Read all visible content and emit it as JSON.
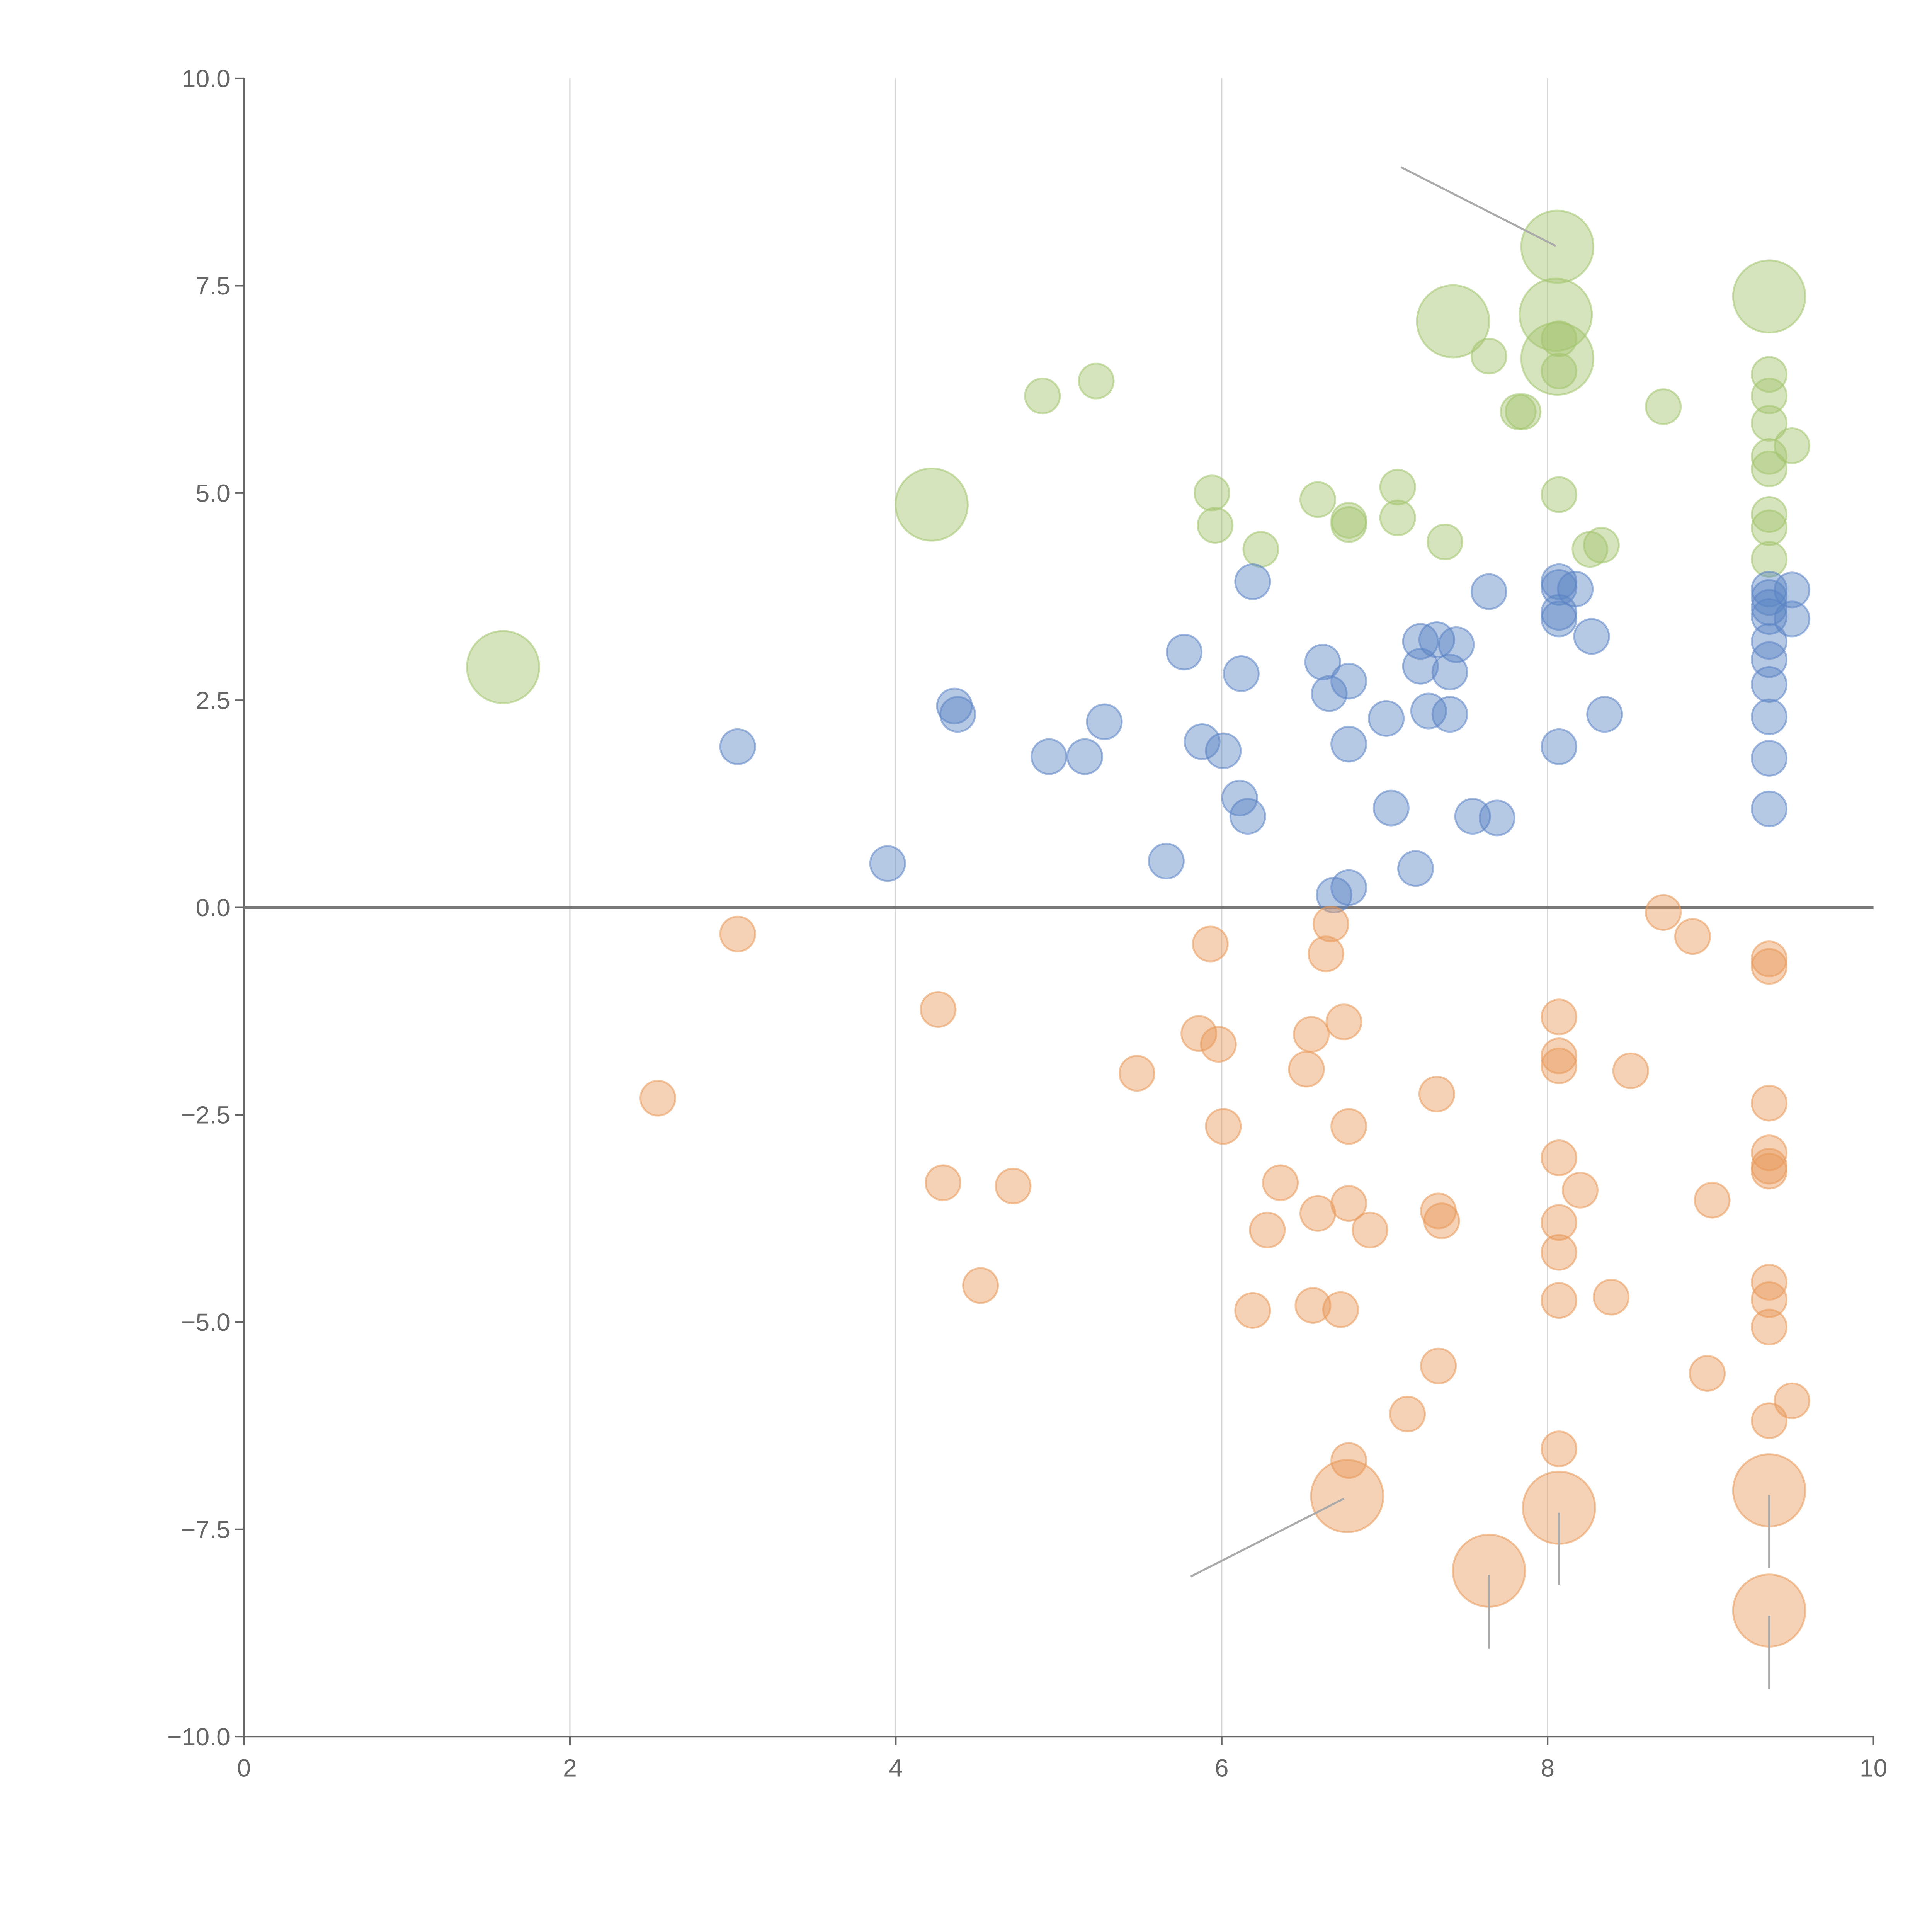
{
  "chart_data": {
    "type": "scatter",
    "title": "",
    "xlabel": "",
    "ylabel": "",
    "xlim": [
      0,
      10
    ],
    "ylim": [
      -10,
      10
    ],
    "grid": "vertical",
    "reference_line_y": 0,
    "x_ticks": [
      "0",
      "2",
      "4",
      "6",
      "8",
      "10"
    ],
    "x_tick_values": [
      0,
      2,
      4,
      6,
      8,
      10
    ],
    "y_ticks": [
      "10.0",
      "7.5",
      "5.0",
      "2.5",
      "0.0",
      "−2.5",
      "−5.0",
      "−7.5",
      "−10.0"
    ],
    "y_tick_values": [
      10,
      7.5,
      5,
      2.5,
      0,
      -2.5,
      -5,
      -7.5,
      -10
    ],
    "size_legend": "point format [x, y, size] where size 1 = small bubble, 2 = large bubble",
    "series": [
      {
        "name": "green",
        "color": "#a3c46e",
        "points": [
          [
            1.59,
            2.9,
            2
          ],
          [
            4.22,
            4.86,
            2
          ],
          [
            8.06,
            7.97,
            2
          ],
          [
            9.36,
            7.37,
            2
          ],
          [
            7.42,
            7.07,
            2
          ],
          [
            8.05,
            7.15,
            2
          ],
          [
            8.06,
            6.62,
            2
          ],
          [
            4.9,
            6.17,
            1
          ],
          [
            5.23,
            6.35,
            1
          ],
          [
            5.94,
            5.0,
            1
          ],
          [
            5.96,
            4.61,
            1
          ],
          [
            6.24,
            4.32,
            1
          ],
          [
            6.59,
            4.92,
            1
          ],
          [
            6.78,
            4.67,
            1
          ],
          [
            6.78,
            4.62,
            1
          ],
          [
            7.08,
            5.07,
            1
          ],
          [
            7.08,
            4.7,
            1
          ],
          [
            7.37,
            4.41,
            1
          ],
          [
            7.64,
            6.65,
            1
          ],
          [
            7.82,
            5.98,
            1
          ],
          [
            7.85,
            5.98,
            1
          ],
          [
            8.07,
            6.86,
            1
          ],
          [
            8.07,
            6.47,
            1
          ],
          [
            8.07,
            4.98,
            1
          ],
          [
            8.26,
            4.32,
            1
          ],
          [
            8.33,
            4.37,
            1
          ],
          [
            8.71,
            6.04,
            1
          ],
          [
            9.36,
            6.43,
            1
          ],
          [
            9.36,
            6.17,
            1
          ],
          [
            9.36,
            5.84,
            1
          ],
          [
            9.36,
            5.44,
            1
          ],
          [
            9.36,
            5.29,
            1
          ],
          [
            9.5,
            5.57,
            1
          ],
          [
            9.36,
            4.74,
            1
          ],
          [
            9.36,
            4.58,
            1
          ],
          [
            9.36,
            4.2,
            1
          ]
        ]
      },
      {
        "name": "blue",
        "color": "#5b84c4",
        "points": [
          [
            3.03,
            1.94,
            1
          ],
          [
            3.95,
            0.53,
            1
          ],
          [
            4.36,
            2.43,
            1
          ],
          [
            4.38,
            2.33,
            1
          ],
          [
            4.94,
            1.82,
            1
          ],
          [
            5.16,
            1.82,
            1
          ],
          [
            5.28,
            2.24,
            1
          ],
          [
            5.66,
            0.56,
            1
          ],
          [
            5.77,
            3.08,
            1
          ],
          [
            5.88,
            2.0,
            1
          ],
          [
            6.01,
            1.89,
            1
          ],
          [
            6.11,
            1.32,
            1
          ],
          [
            6.12,
            2.82,
            1
          ],
          [
            6.16,
            1.1,
            1
          ],
          [
            6.19,
            3.93,
            1
          ],
          [
            6.62,
            2.96,
            1
          ],
          [
            6.66,
            2.58,
            1
          ],
          [
            6.78,
            2.73,
            1
          ],
          [
            6.78,
            1.97,
            1
          ],
          [
            6.69,
            0.15,
            1
          ],
          [
            6.78,
            0.24,
            1
          ],
          [
            7.01,
            2.28,
            1
          ],
          [
            7.04,
            1.2,
            1
          ],
          [
            7.19,
            0.47,
            1
          ],
          [
            7.22,
            3.21,
            1
          ],
          [
            7.22,
            2.91,
            1
          ],
          [
            7.27,
            2.37,
            1
          ],
          [
            7.32,
            3.23,
            1
          ],
          [
            7.4,
            2.33,
            1
          ],
          [
            7.4,
            2.84,
            1
          ],
          [
            7.44,
            3.17,
            1
          ],
          [
            7.54,
            1.1,
            1
          ],
          [
            7.64,
            3.81,
            1
          ],
          [
            7.69,
            1.08,
            1
          ],
          [
            8.07,
            3.93,
            1
          ],
          [
            8.07,
            3.86,
            1
          ],
          [
            8.07,
            3.56,
            1
          ],
          [
            8.07,
            3.48,
            1
          ],
          [
            8.17,
            3.84,
            1
          ],
          [
            8.07,
            1.94,
            1
          ],
          [
            8.27,
            3.27,
            1
          ],
          [
            8.35,
            2.33,
            1
          ],
          [
            9.36,
            3.84,
            1
          ],
          [
            9.36,
            3.74,
            1
          ],
          [
            9.36,
            3.62,
            1
          ],
          [
            9.36,
            3.51,
            1
          ],
          [
            9.5,
            3.83,
            1
          ],
          [
            9.5,
            3.48,
            1
          ],
          [
            9.36,
            3.21,
            1
          ],
          [
            9.36,
            2.99,
            1
          ],
          [
            9.36,
            2.69,
            1
          ],
          [
            9.36,
            2.3,
            1
          ],
          [
            9.36,
            1.8,
            1
          ],
          [
            9.36,
            1.19,
            1
          ]
        ]
      },
      {
        "name": "orange",
        "color": "#e8995a",
        "points": [
          [
            3.03,
            -0.32,
            1
          ],
          [
            2.54,
            -2.3,
            1
          ],
          [
            4.26,
            -1.23,
            1
          ],
          [
            4.29,
            -3.32,
            1
          ],
          [
            4.52,
            -4.56,
            1
          ],
          [
            4.72,
            -3.36,
            1
          ],
          [
            5.48,
            -2.0,
            1
          ],
          [
            5.86,
            -1.52,
            1
          ],
          [
            5.93,
            -0.44,
            1
          ],
          [
            5.98,
            -1.65,
            1
          ],
          [
            6.01,
            -2.64,
            1
          ],
          [
            6.19,
            -4.86,
            1
          ],
          [
            6.28,
            -3.89,
            1
          ],
          [
            6.36,
            -3.32,
            1
          ],
          [
            6.52,
            -1.95,
            1
          ],
          [
            6.55,
            -1.53,
            1
          ],
          [
            6.56,
            -4.8,
            1
          ],
          [
            6.59,
            -3.69,
            1
          ],
          [
            6.64,
            -0.56,
            1
          ],
          [
            6.67,
            -0.2,
            1
          ],
          [
            6.73,
            -4.85,
            1
          ],
          [
            6.75,
            -1.38,
            1
          ],
          [
            6.78,
            -2.64,
            1
          ],
          [
            6.78,
            -3.57,
            1
          ],
          [
            6.78,
            -6.67,
            1
          ],
          [
            6.91,
            -3.89,
            1
          ],
          [
            7.14,
            -6.11,
            1
          ],
          [
            7.32,
            -2.25,
            1
          ],
          [
            7.33,
            -3.66,
            1
          ],
          [
            7.35,
            -3.78,
            1
          ],
          [
            7.33,
            -5.53,
            1
          ],
          [
            8.07,
            -1.32,
            1
          ],
          [
            8.07,
            -1.79,
            1
          ],
          [
            8.07,
            -1.91,
            1
          ],
          [
            8.07,
            -3.02,
            1
          ],
          [
            8.07,
            -3.8,
            1
          ],
          [
            8.07,
            -4.16,
            1
          ],
          [
            8.07,
            -4.74,
            1
          ],
          [
            8.07,
            -6.53,
            1
          ],
          [
            8.2,
            -3.41,
            1
          ],
          [
            8.39,
            -4.7,
            1
          ],
          [
            8.51,
            -1.97,
            1
          ],
          [
            8.71,
            -0.06,
            1
          ],
          [
            8.89,
            -0.35,
            1
          ],
          [
            9.01,
            -3.53,
            1
          ],
          [
            8.98,
            -5.62,
            1
          ],
          [
            9.36,
            -0.62,
            1
          ],
          [
            9.36,
            -0.71,
            1
          ],
          [
            9.36,
            -2.36,
            1
          ],
          [
            9.36,
            -2.96,
            1
          ],
          [
            9.36,
            -3.12,
            1
          ],
          [
            9.36,
            -3.18,
            1
          ],
          [
            9.36,
            -4.52,
            1
          ],
          [
            9.36,
            -4.73,
            1
          ],
          [
            9.36,
            -5.06,
            1
          ],
          [
            9.5,
            -5.95,
            1
          ],
          [
            9.36,
            -6.19,
            1
          ],
          [
            6.77,
            -7.1,
            2
          ],
          [
            7.64,
            -8.0,
            2
          ],
          [
            8.07,
            -7.24,
            2
          ],
          [
            9.36,
            -7.03,
            2
          ],
          [
            9.36,
            -8.48,
            2
          ]
        ]
      }
    ],
    "annotation_leaders": [
      [
        [
          7.1,
          8.93
        ],
        [
          8.05,
          7.98
        ]
      ],
      [
        [
          5.81,
          -8.07
        ],
        [
          6.75,
          -7.13
        ]
      ],
      [
        [
          7.64,
          -8.05
        ],
        [
          7.64,
          -8.94
        ]
      ],
      [
        [
          8.07,
          -7.3
        ],
        [
          8.07,
          -8.17
        ]
      ],
      [
        [
          9.36,
          -7.09
        ],
        [
          9.36,
          -7.97
        ]
      ],
      [
        [
          9.36,
          -8.54
        ],
        [
          9.36,
          -9.43
        ]
      ]
    ]
  }
}
